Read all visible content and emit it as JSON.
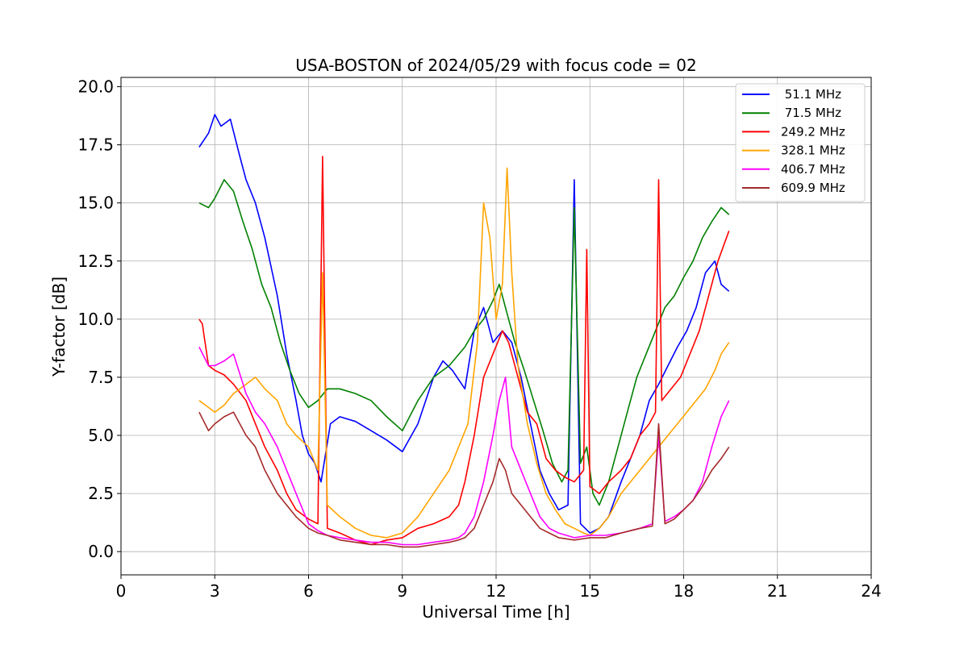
{
  "chart_data": {
    "type": "line",
    "title": "USA-BOSTON of 2024/05/29 with focus code = 02",
    "xlabel": "Universal Time [h]",
    "ylabel": "Y-factor [dB]",
    "xlim": [
      0,
      24
    ],
    "ylim": [
      -1,
      20.4
    ],
    "xticks": [
      0,
      3,
      6,
      9,
      12,
      15,
      18,
      21,
      24
    ],
    "xtick_labels": [
      "0",
      "3",
      "6",
      "9",
      "12",
      "15",
      "18",
      "21",
      "24"
    ],
    "yticks": [
      0,
      2.5,
      5,
      7.5,
      10,
      12.5,
      15,
      17.5,
      20
    ],
    "ytick_labels": [
      "0.0",
      "2.5",
      "5.0",
      "7.5",
      "10.0",
      "12.5",
      "15.0",
      "17.5",
      "20.0"
    ],
    "grid": true,
    "legend_position": "top-right",
    "series": [
      {
        "name": "51.1 MHz",
        "legend_label": " 51.1 MHz",
        "color": "#0000ff",
        "x": [
          2.5,
          2.8,
          3.0,
          3.2,
          3.5,
          3.8,
          4.0,
          4.3,
          4.6,
          5.0,
          5.3,
          5.6,
          5.8,
          6.0,
          6.2,
          6.4,
          6.7,
          7.0,
          7.5,
          8.0,
          8.5,
          9.0,
          9.5,
          10.0,
          10.3,
          10.6,
          11.0,
          11.3,
          11.6,
          11.9,
          12.2,
          12.5,
          12.8,
          13.1,
          13.4,
          13.7,
          14.0,
          14.3,
          14.5,
          14.7,
          15.0,
          15.3,
          15.6,
          16.0,
          16.3,
          16.6,
          16.9,
          17.2,
          17.5,
          17.8,
          18.1,
          18.4,
          18.7,
          19.0,
          19.2,
          19.45
        ],
        "y": [
          17.4,
          18.0,
          18.8,
          18.3,
          18.6,
          17.0,
          16.0,
          15.0,
          13.5,
          11.0,
          8.5,
          6.5,
          5.0,
          4.2,
          3.8,
          3.0,
          5.5,
          5.8,
          5.6,
          5.2,
          4.8,
          4.3,
          5.5,
          7.5,
          8.2,
          7.8,
          7.0,
          9.5,
          10.5,
          9.0,
          9.5,
          9.0,
          7.5,
          5.5,
          3.5,
          2.5,
          1.8,
          2.0,
          16.0,
          1.2,
          0.8,
          1.0,
          1.5,
          3.0,
          4.0,
          5.0,
          6.5,
          7.2,
          8.0,
          8.8,
          9.5,
          10.5,
          12.0,
          12.5,
          11.5,
          11.2
        ]
      },
      {
        "name": "71.5 MHz",
        "legend_label": " 71.5 MHz",
        "color": "#008000",
        "x": [
          2.5,
          2.8,
          3.0,
          3.3,
          3.6,
          3.9,
          4.2,
          4.5,
          4.8,
          5.1,
          5.4,
          5.7,
          6.0,
          6.3,
          6.6,
          7.0,
          7.5,
          8.0,
          8.5,
          9.0,
          9.5,
          10.0,
          10.5,
          11.0,
          11.3,
          11.6,
          11.9,
          12.1,
          12.3,
          12.6,
          12.9,
          13.2,
          13.5,
          13.8,
          14.1,
          14.3,
          14.5,
          14.7,
          14.9,
          15.1,
          15.3,
          15.6,
          15.9,
          16.2,
          16.5,
          16.8,
          17.1,
          17.4,
          17.7,
          18.0,
          18.3,
          18.6,
          18.9,
          19.2,
          19.45
        ],
        "y": [
          15.0,
          14.8,
          15.2,
          16.0,
          15.5,
          14.2,
          13.0,
          11.5,
          10.5,
          9.0,
          7.8,
          6.8,
          6.2,
          6.5,
          7.0,
          7.0,
          6.8,
          6.5,
          5.8,
          5.2,
          6.5,
          7.5,
          8.0,
          8.8,
          9.5,
          10.0,
          10.8,
          11.5,
          10.5,
          9.0,
          7.8,
          6.5,
          5.2,
          3.8,
          3.0,
          3.5,
          14.8,
          3.8,
          4.5,
          2.5,
          2.0,
          3.0,
          4.5,
          6.0,
          7.5,
          8.5,
          9.5,
          10.5,
          11.0,
          11.8,
          12.5,
          13.5,
          14.2,
          14.8,
          14.5
        ]
      },
      {
        "name": "249.2 MHz",
        "legend_label": "249.2 MHz",
        "color": "#ff0000",
        "x": [
          2.5,
          2.6,
          2.8,
          3.0,
          3.3,
          3.6,
          4.0,
          4.3,
          4.6,
          5.0,
          5.3,
          5.6,
          6.0,
          6.3,
          6.45,
          6.6,
          7.0,
          7.5,
          8.0,
          8.5,
          9.0,
          9.5,
          10.0,
          10.5,
          10.8,
          11.0,
          11.3,
          11.6,
          11.9,
          12.2,
          12.4,
          12.7,
          13.0,
          13.3,
          13.6,
          13.9,
          14.2,
          14.5,
          14.8,
          14.9,
          15.0,
          15.3,
          15.6,
          16.0,
          16.3,
          16.6,
          16.9,
          17.1,
          17.2,
          17.3,
          17.6,
          17.9,
          18.2,
          18.5,
          18.8,
          19.1,
          19.45
        ],
        "y": [
          10.0,
          9.8,
          8.0,
          7.8,
          7.6,
          7.2,
          6.5,
          5.5,
          4.5,
          3.5,
          2.5,
          1.8,
          1.4,
          1.2,
          17.0,
          1.0,
          0.8,
          0.5,
          0.3,
          0.5,
          0.6,
          1.0,
          1.2,
          1.5,
          2.0,
          3.0,
          5.0,
          7.5,
          8.5,
          9.5,
          9.0,
          7.5,
          6.0,
          5.5,
          4.0,
          3.5,
          3.2,
          3.0,
          3.5,
          13.0,
          2.8,
          2.5,
          3.0,
          3.5,
          4.0,
          5.0,
          5.5,
          6.0,
          16.0,
          6.5,
          7.0,
          7.5,
          8.5,
          9.5,
          11.0,
          12.5,
          13.8
        ]
      },
      {
        "name": "328.1 MHz",
        "legend_label": "328.1 MHz",
        "color": "#ffa500",
        "x": [
          2.5,
          2.8,
          3.0,
          3.3,
          3.6,
          4.0,
          4.3,
          4.6,
          5.0,
          5.3,
          5.6,
          6.0,
          6.3,
          6.45,
          6.6,
          7.0,
          7.5,
          8.0,
          8.5,
          9.0,
          9.5,
          10.0,
          10.5,
          10.8,
          11.1,
          11.4,
          11.6,
          11.8,
          12.0,
          12.2,
          12.35,
          12.5,
          12.7,
          13.0,
          13.3,
          13.6,
          13.9,
          14.2,
          14.5,
          14.8,
          15.0,
          15.3,
          15.6,
          16.0,
          16.3,
          16.6,
          16.9,
          17.2,
          17.5,
          17.8,
          18.1,
          18.4,
          18.7,
          19.0,
          19.2,
          19.45
        ],
        "y": [
          6.5,
          6.2,
          6.0,
          6.3,
          6.8,
          7.2,
          7.5,
          7.0,
          6.5,
          5.5,
          5.0,
          4.5,
          3.5,
          12.0,
          2.0,
          1.5,
          1.0,
          0.7,
          0.6,
          0.8,
          1.5,
          2.5,
          3.5,
          4.5,
          5.5,
          9.0,
          15.0,
          13.5,
          10.0,
          11.5,
          16.5,
          12.0,
          8.0,
          5.5,
          3.8,
          2.5,
          1.8,
          1.2,
          1.0,
          0.8,
          0.7,
          1.0,
          1.5,
          2.5,
          3.0,
          3.5,
          4.0,
          4.5,
          5.0,
          5.5,
          6.0,
          6.5,
          7.0,
          7.8,
          8.5,
          9.0
        ]
      },
      {
        "name": "406.7 MHz",
        "legend_label": "406.7 MHz",
        "color": "#ff00ff",
        "x": [
          2.5,
          2.8,
          3.0,
          3.3,
          3.6,
          4.0,
          4.3,
          4.6,
          5.0,
          5.3,
          5.6,
          6.0,
          6.3,
          6.6,
          7.0,
          7.5,
          8.0,
          8.5,
          9.0,
          9.5,
          10.0,
          10.5,
          10.8,
          11.0,
          11.3,
          11.6,
          11.9,
          12.1,
          12.3,
          12.5,
          12.8,
          13.1,
          13.4,
          13.7,
          14.0,
          14.5,
          15.0,
          15.5,
          16.0,
          16.3,
          16.6,
          17.0,
          17.2,
          17.4,
          17.7,
          18.0,
          18.3,
          18.6,
          18.9,
          19.2,
          19.45
        ],
        "y": [
          8.8,
          8.0,
          8.0,
          8.2,
          8.5,
          6.8,
          6.0,
          5.5,
          4.5,
          3.5,
          2.5,
          1.2,
          0.9,
          0.7,
          0.6,
          0.5,
          0.4,
          0.4,
          0.3,
          0.3,
          0.4,
          0.5,
          0.6,
          0.8,
          1.5,
          3.0,
          5.0,
          6.5,
          7.5,
          4.5,
          3.5,
          2.5,
          1.5,
          1.0,
          0.8,
          0.6,
          0.7,
          0.7,
          0.8,
          0.9,
          1.0,
          1.2,
          5.0,
          1.3,
          1.5,
          1.8,
          2.2,
          3.0,
          4.5,
          5.8,
          6.5
        ]
      },
      {
        "name": "609.9 MHz",
        "legend_label": "609.9 MHz",
        "color": "#a52a2a",
        "x": [
          2.5,
          2.8,
          3.0,
          3.3,
          3.6,
          4.0,
          4.3,
          4.6,
          5.0,
          5.3,
          5.6,
          6.0,
          6.3,
          6.6,
          7.0,
          7.5,
          8.0,
          8.5,
          9.0,
          9.5,
          10.0,
          10.5,
          10.8,
          11.0,
          11.3,
          11.6,
          11.9,
          12.1,
          12.3,
          12.5,
          12.8,
          13.1,
          13.4,
          13.7,
          14.0,
          14.5,
          15.0,
          15.5,
          16.0,
          16.3,
          16.6,
          17.0,
          17.2,
          17.4,
          17.7,
          18.0,
          18.3,
          18.6,
          18.9,
          19.2,
          19.45
        ],
        "y": [
          6.0,
          5.2,
          5.5,
          5.8,
          6.0,
          5.0,
          4.5,
          3.5,
          2.5,
          2.0,
          1.5,
          1.0,
          0.8,
          0.7,
          0.5,
          0.4,
          0.3,
          0.3,
          0.2,
          0.2,
          0.3,
          0.4,
          0.5,
          0.6,
          1.0,
          2.0,
          3.0,
          4.0,
          3.5,
          2.5,
          2.0,
          1.5,
          1.0,
          0.8,
          0.6,
          0.5,
          0.6,
          0.6,
          0.8,
          0.9,
          1.0,
          1.1,
          5.5,
          1.2,
          1.4,
          1.8,
          2.2,
          2.8,
          3.5,
          4.0,
          4.5
        ]
      }
    ]
  }
}
